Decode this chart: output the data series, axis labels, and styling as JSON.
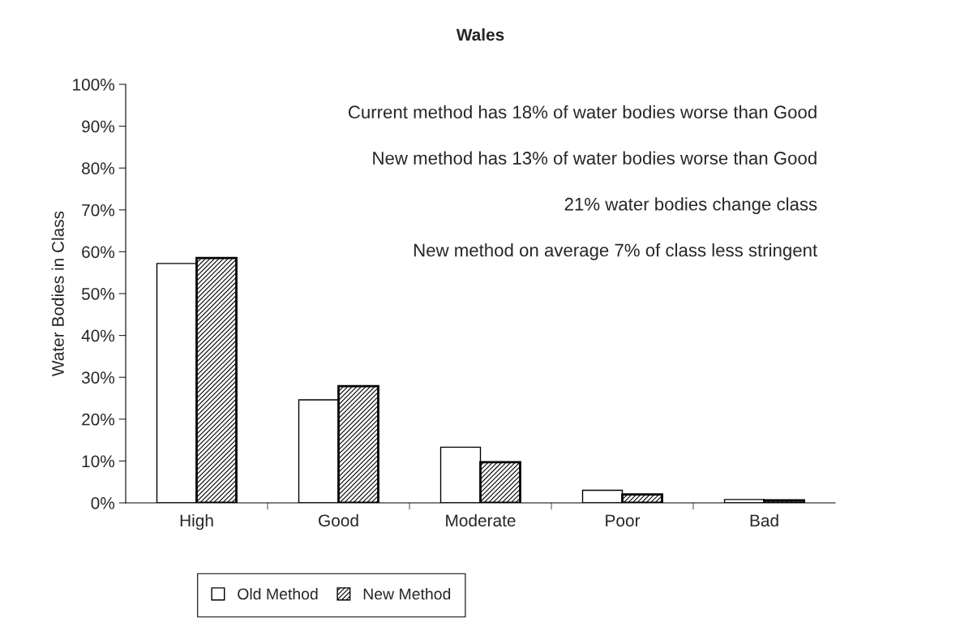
{
  "chart_data": {
    "type": "bar",
    "title": "Wales",
    "ylabel": "Water Bodies in Class",
    "categories": [
      "High",
      "Good",
      "Moderate",
      "Poor",
      "Bad"
    ],
    "series": [
      {
        "name": "Old Method",
        "color": "#ffffff",
        "values": [
          57.2,
          24.6,
          13.3,
          3.0,
          0.8
        ]
      },
      {
        "name": "New Method",
        "color": "#000000",
        "values": [
          58.5,
          27.9,
          9.7,
          2.0,
          0.6
        ]
      }
    ],
    "ylim": [
      0,
      100
    ],
    "yticks": [
      {
        "value": 0,
        "label": "0%"
      },
      {
        "value": 10,
        "label": "10%"
      },
      {
        "value": 20,
        "label": "20%"
      },
      {
        "value": 30,
        "label": "30%"
      },
      {
        "value": 40,
        "label": "40%"
      },
      {
        "value": 50,
        "label": "50%"
      },
      {
        "value": 60,
        "label": "60%"
      },
      {
        "value": 70,
        "label": "70%"
      },
      {
        "value": 80,
        "label": "80%"
      },
      {
        "value": 90,
        "label": "90%"
      },
      {
        "value": 100,
        "label": "100%"
      }
    ],
    "annotations": [
      "Current method has 18% of water bodies worse than Good",
      "New method has 13% of water bodies worse than Good",
      "21% water bodies change class",
      "New method on average 7% of class less stringent"
    ],
    "grid": false,
    "legend": "bottom"
  }
}
